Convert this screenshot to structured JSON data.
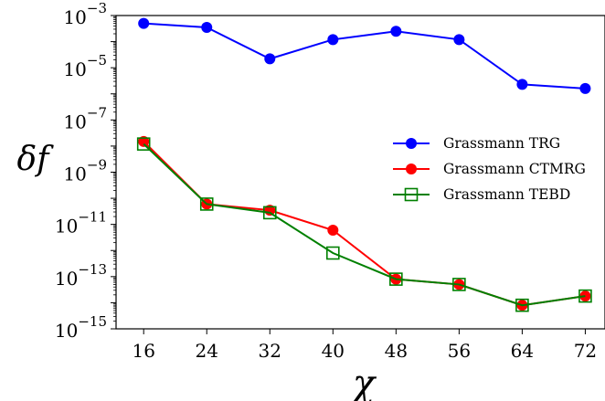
{
  "chart_data": {
    "type": "line",
    "xlabel": "χ",
    "ylabel": "δf",
    "x": [
      16,
      24,
      32,
      40,
      48,
      56,
      64,
      72
    ],
    "x_ticks": [
      "16",
      "24",
      "32",
      "40",
      "48",
      "56",
      "64",
      "72"
    ],
    "xlim": [
      12.5,
      74.5
    ],
    "ylim": [
      1e-15,
      0.001
    ],
    "yscale": "log",
    "y_ticks": [
      {
        "base": "10",
        "exp": "−3",
        "value": 0.001
      },
      {
        "base": "10",
        "exp": "−5",
        "value": 1e-05
      },
      {
        "base": "10",
        "exp": "−7",
        "value": 1e-07
      },
      {
        "base": "10",
        "exp": "−9",
        "value": 1e-09
      },
      {
        "base": "10",
        "exp": "−11",
        "value": 1e-11
      },
      {
        "base": "10",
        "exp": "−13",
        "value": 1e-13
      },
      {
        "base": "10",
        "exp": "−15",
        "value": 1e-15
      }
    ],
    "legend_position": "center-right",
    "series": [
      {
        "name": "Grassmann TRG",
        "color": "#0000ff",
        "marker": "filled-circle",
        "values": [
          0.0005,
          0.00035,
          2.2e-05,
          0.00012,
          0.00025,
          0.00012,
          2.3e-06,
          1.6e-06
        ]
      },
      {
        "name": "Grassmann CTMRG",
        "color": "#ff0000",
        "marker": "filled-circle",
        "values": [
          1.5e-08,
          6e-11,
          3.5e-11,
          6e-12,
          8e-14,
          5e-14,
          8e-15,
          1.8e-14
        ]
      },
      {
        "name": "Grassmann TEBD",
        "color": "#008000",
        "marker": "open-square",
        "values": [
          1.2e-08,
          6e-11,
          2.8e-11,
          8e-13,
          8e-14,
          5e-14,
          8e-15,
          1.8e-14
        ]
      }
    ]
  }
}
